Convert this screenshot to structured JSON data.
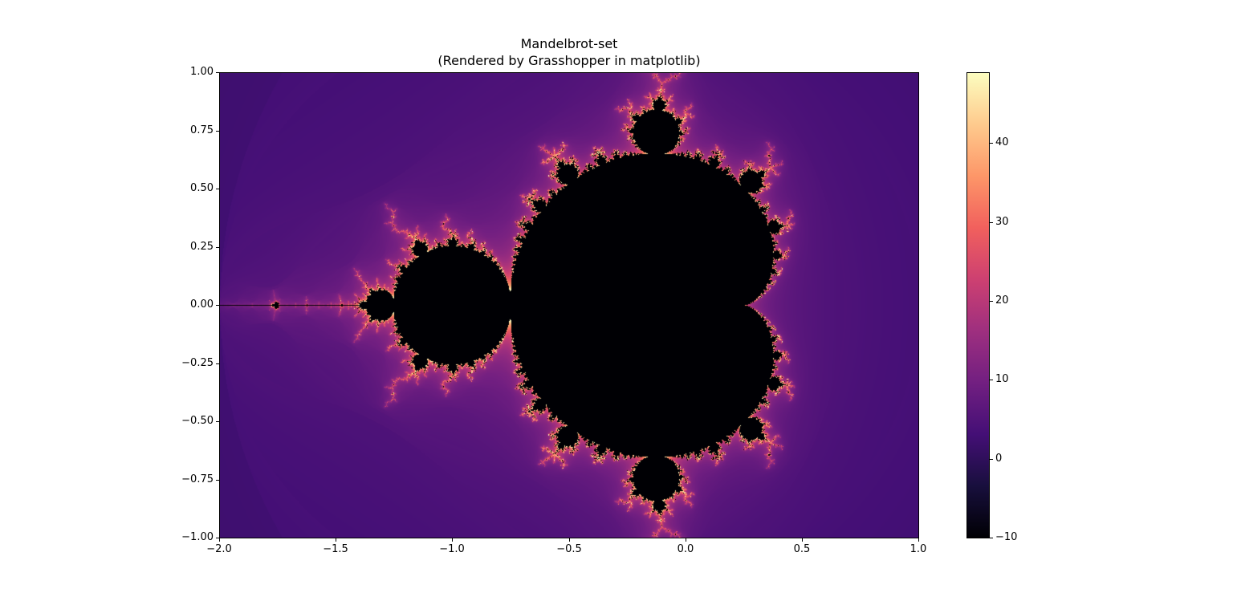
{
  "chart_data": {
    "type": "heatmap",
    "title": "Mandelbrot-set",
    "subtitle": "(Rendered by Grasshopper in matplotlib)",
    "xlabel": "",
    "ylabel": "",
    "xlim": [
      -2.0,
      1.0
    ],
    "ylim": [
      -1.0,
      1.0
    ],
    "colormap": "magma",
    "max_iter": 50,
    "colorbar_range": [
      -10,
      49
    ],
    "grid": false,
    "x_ticks": [
      {
        "value": -2.0,
        "label": "−2.0"
      },
      {
        "value": -1.5,
        "label": "−1.5"
      },
      {
        "value": -1.0,
        "label": "−1.0"
      },
      {
        "value": -0.5,
        "label": "−0.5"
      },
      {
        "value": 0.0,
        "label": "0.0"
      },
      {
        "value": 0.5,
        "label": "0.5"
      },
      {
        "value": 1.0,
        "label": "1.0"
      }
    ],
    "y_ticks": [
      {
        "value": 1.0,
        "label": "1.00"
      },
      {
        "value": 0.75,
        "label": "0.75"
      },
      {
        "value": 0.5,
        "label": "0.50"
      },
      {
        "value": 0.25,
        "label": "0.25"
      },
      {
        "value": 0.0,
        "label": "0.00"
      },
      {
        "value": -0.25,
        "label": "−0.25"
      },
      {
        "value": -0.5,
        "label": "−0.50"
      },
      {
        "value": -0.75,
        "label": "−0.75"
      },
      {
        "value": -1.0,
        "label": "−1.00"
      }
    ],
    "colorbar_ticks": [
      {
        "value": 40,
        "label": "40"
      },
      {
        "value": 30,
        "label": "30"
      },
      {
        "value": 20,
        "label": "20"
      },
      {
        "value": 10,
        "label": "10"
      },
      {
        "value": 0,
        "label": "0"
      },
      {
        "value": -10,
        "label": "−10"
      }
    ],
    "colormap_stops": [
      "#000004",
      "#180f3d",
      "#440f76",
      "#721f81",
      "#9e2f7f",
      "#cd4071",
      "#f1605d",
      "#fd9668",
      "#feca8d",
      "#fcfdbf"
    ]
  }
}
